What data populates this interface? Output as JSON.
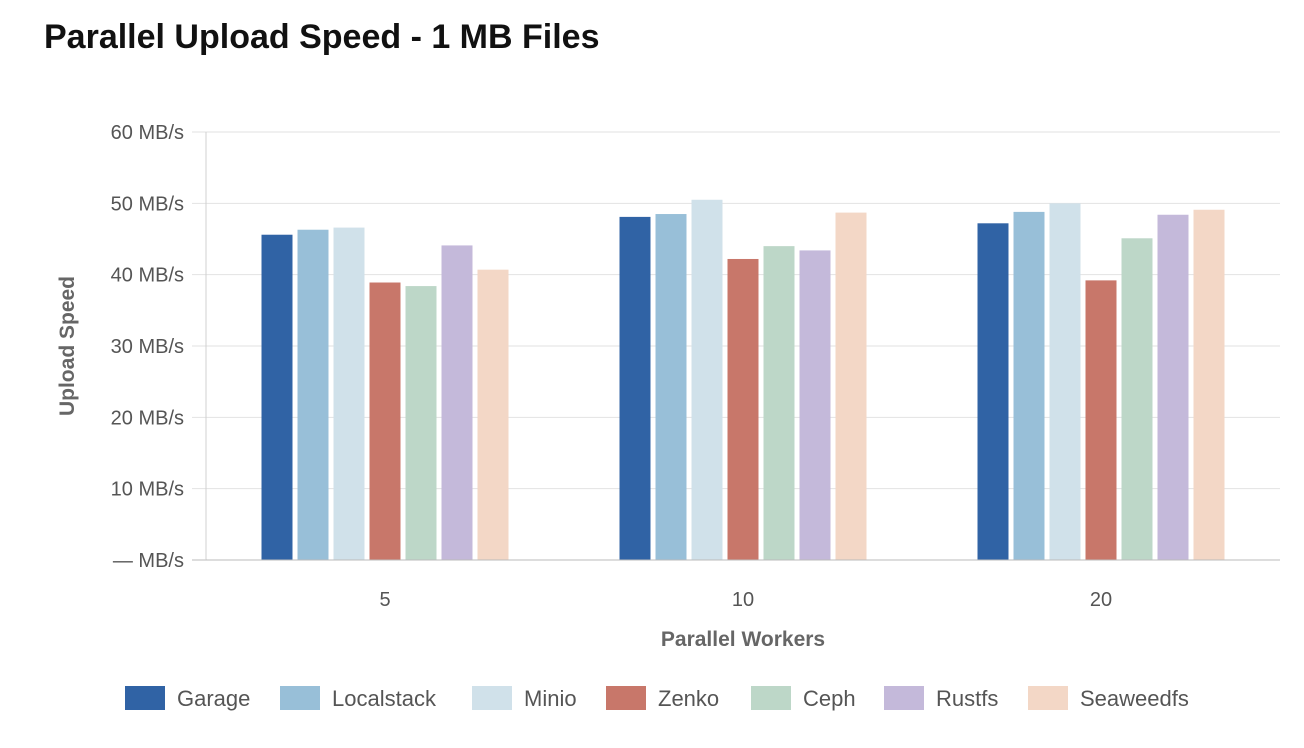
{
  "chart_data": {
    "type": "bar",
    "title": "Parallel Upload Speed - 1 MB Files",
    "xlabel": "Parallel Workers",
    "ylabel": "Upload Speed",
    "categories": [
      "5",
      "10",
      "20"
    ],
    "ylim": [
      0,
      60
    ],
    "yticks": [
      {
        "value": 0,
        "label": "— MB/s"
      },
      {
        "value": 10,
        "label": "10 MB/s"
      },
      {
        "value": 20,
        "label": "20 MB/s"
      },
      {
        "value": 30,
        "label": "30 MB/s"
      },
      {
        "value": 40,
        "label": "40 MB/s"
      },
      {
        "value": 50,
        "label": "50 MB/s"
      },
      {
        "value": 60,
        "label": "60 MB/s"
      }
    ],
    "grid": true,
    "legend_position": "bottom",
    "series": [
      {
        "name": "Garage",
        "color": "#3063a5",
        "values": [
          45.6,
          48.1,
          47.2
        ]
      },
      {
        "name": "Localstack",
        "color": "#98bfd8",
        "values": [
          46.3,
          48.5,
          48.8
        ]
      },
      {
        "name": "Minio",
        "color": "#d0e1ea",
        "values": [
          46.6,
          50.5,
          50.0
        ]
      },
      {
        "name": "Zenko",
        "color": "#c8776a",
        "values": [
          38.9,
          42.2,
          39.2
        ]
      },
      {
        "name": "Ceph",
        "color": "#bdd7c8",
        "values": [
          38.4,
          44.0,
          45.1
        ]
      },
      {
        "name": "Rustfs",
        "color": "#c4b9da",
        "values": [
          44.1,
          43.4,
          48.4
        ]
      },
      {
        "name": "Seaweedfs",
        "color": "#f3d7c6",
        "values": [
          40.7,
          48.7,
          49.1
        ]
      }
    ]
  }
}
